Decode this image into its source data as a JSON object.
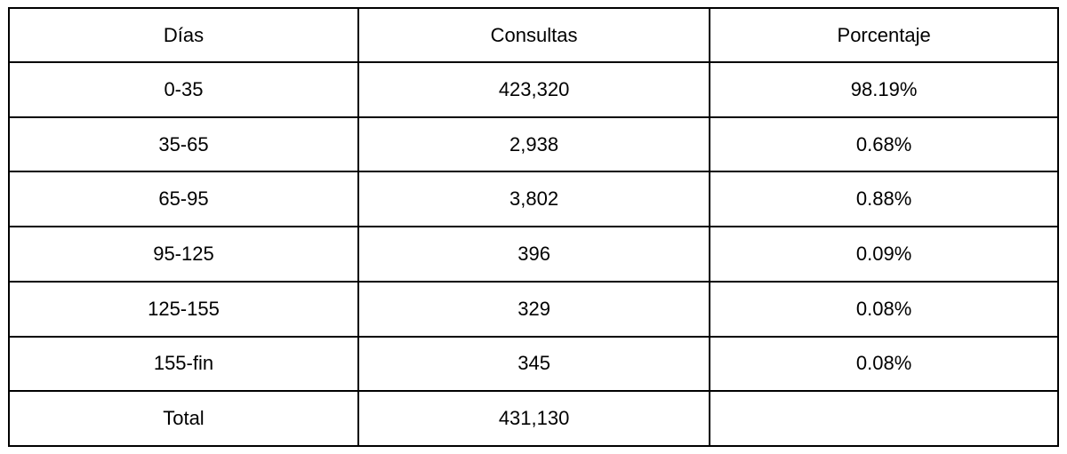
{
  "chart_data": {
    "type": "table",
    "title": "",
    "columns": [
      "Días",
      "Consultas",
      "Porcentaje"
    ],
    "rows": [
      [
        "0-35",
        "423,320",
        "98.19%"
      ],
      [
        "35-65",
        "2,938",
        "0.68%"
      ],
      [
        "65-95",
        "3,802",
        "0.88%"
      ],
      [
        "95-125",
        "396",
        "0.09%"
      ],
      [
        "125-155",
        "329",
        "0.08%"
      ],
      [
        "155-fin",
        "345",
        "0.08%"
      ],
      [
        "Total",
        "431,130",
        ""
      ]
    ],
    "numeric": {
      "categories": [
        "0-35",
        "35-65",
        "65-95",
        "95-125",
        "125-155",
        "155-fin"
      ],
      "consultas": [
        423320,
        2938,
        3802,
        396,
        329,
        345
      ],
      "porcentaje": [
        98.19,
        0.68,
        0.88,
        0.09,
        0.08,
        0.08
      ],
      "total_consultas": 431130
    },
    "layout": {
      "border_color": "#000000",
      "background_color": "#ffffff",
      "text_color": "#000000",
      "alignment": "center"
    }
  }
}
